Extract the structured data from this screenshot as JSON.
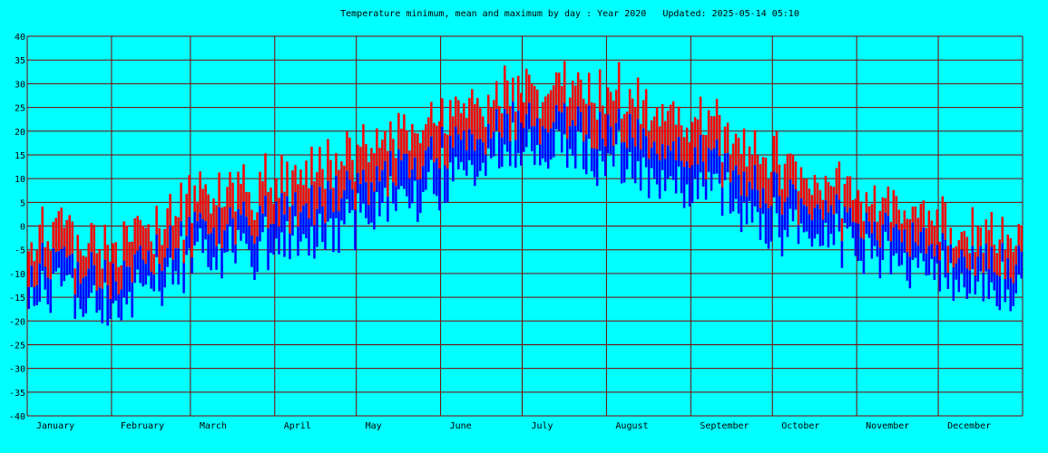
{
  "chart_data": {
    "type": "bar",
    "title": "Temperature minimum, mean and maximum by day : Year 2020   Updated: 2025-05-14 05:10",
    "xlabel": "",
    "ylabel": "",
    "ylim": [
      -40,
      40
    ],
    "y_ticks": [
      40,
      35,
      30,
      25,
      20,
      15,
      10,
      5,
      0,
      -5,
      -10,
      -15,
      -20,
      -25,
      -30,
      -35,
      -40
    ],
    "months": [
      "January",
      "February",
      "March",
      "April",
      "May",
      "June",
      "July",
      "August",
      "September",
      "October",
      "November",
      "December"
    ],
    "month_days": [
      31,
      29,
      31,
      30,
      31,
      30,
      31,
      31,
      30,
      31,
      30,
      31
    ],
    "grid": true,
    "background_color": "#00ffff",
    "grid_color": "#800000",
    "series": [
      {
        "name": "minimum",
        "color": "#0000ff"
      },
      {
        "name": "mean",
        "color": "#0000ff"
      },
      {
        "name": "maximum",
        "color": "#ff0000"
      }
    ],
    "monthly_profile": {
      "max": [
        -4,
        -7,
        2,
        6,
        13,
        21,
        27,
        26,
        21,
        12,
        3,
        -2
      ],
      "mean": [
        -8,
        -11,
        -2,
        2,
        8,
        16,
        22,
        21,
        16,
        7,
        0,
        -5
      ],
      "min": [
        -11,
        -15,
        -5,
        -2,
        4,
        12,
        18,
        17,
        12,
        3,
        -3,
        -8
      ]
    }
  }
}
